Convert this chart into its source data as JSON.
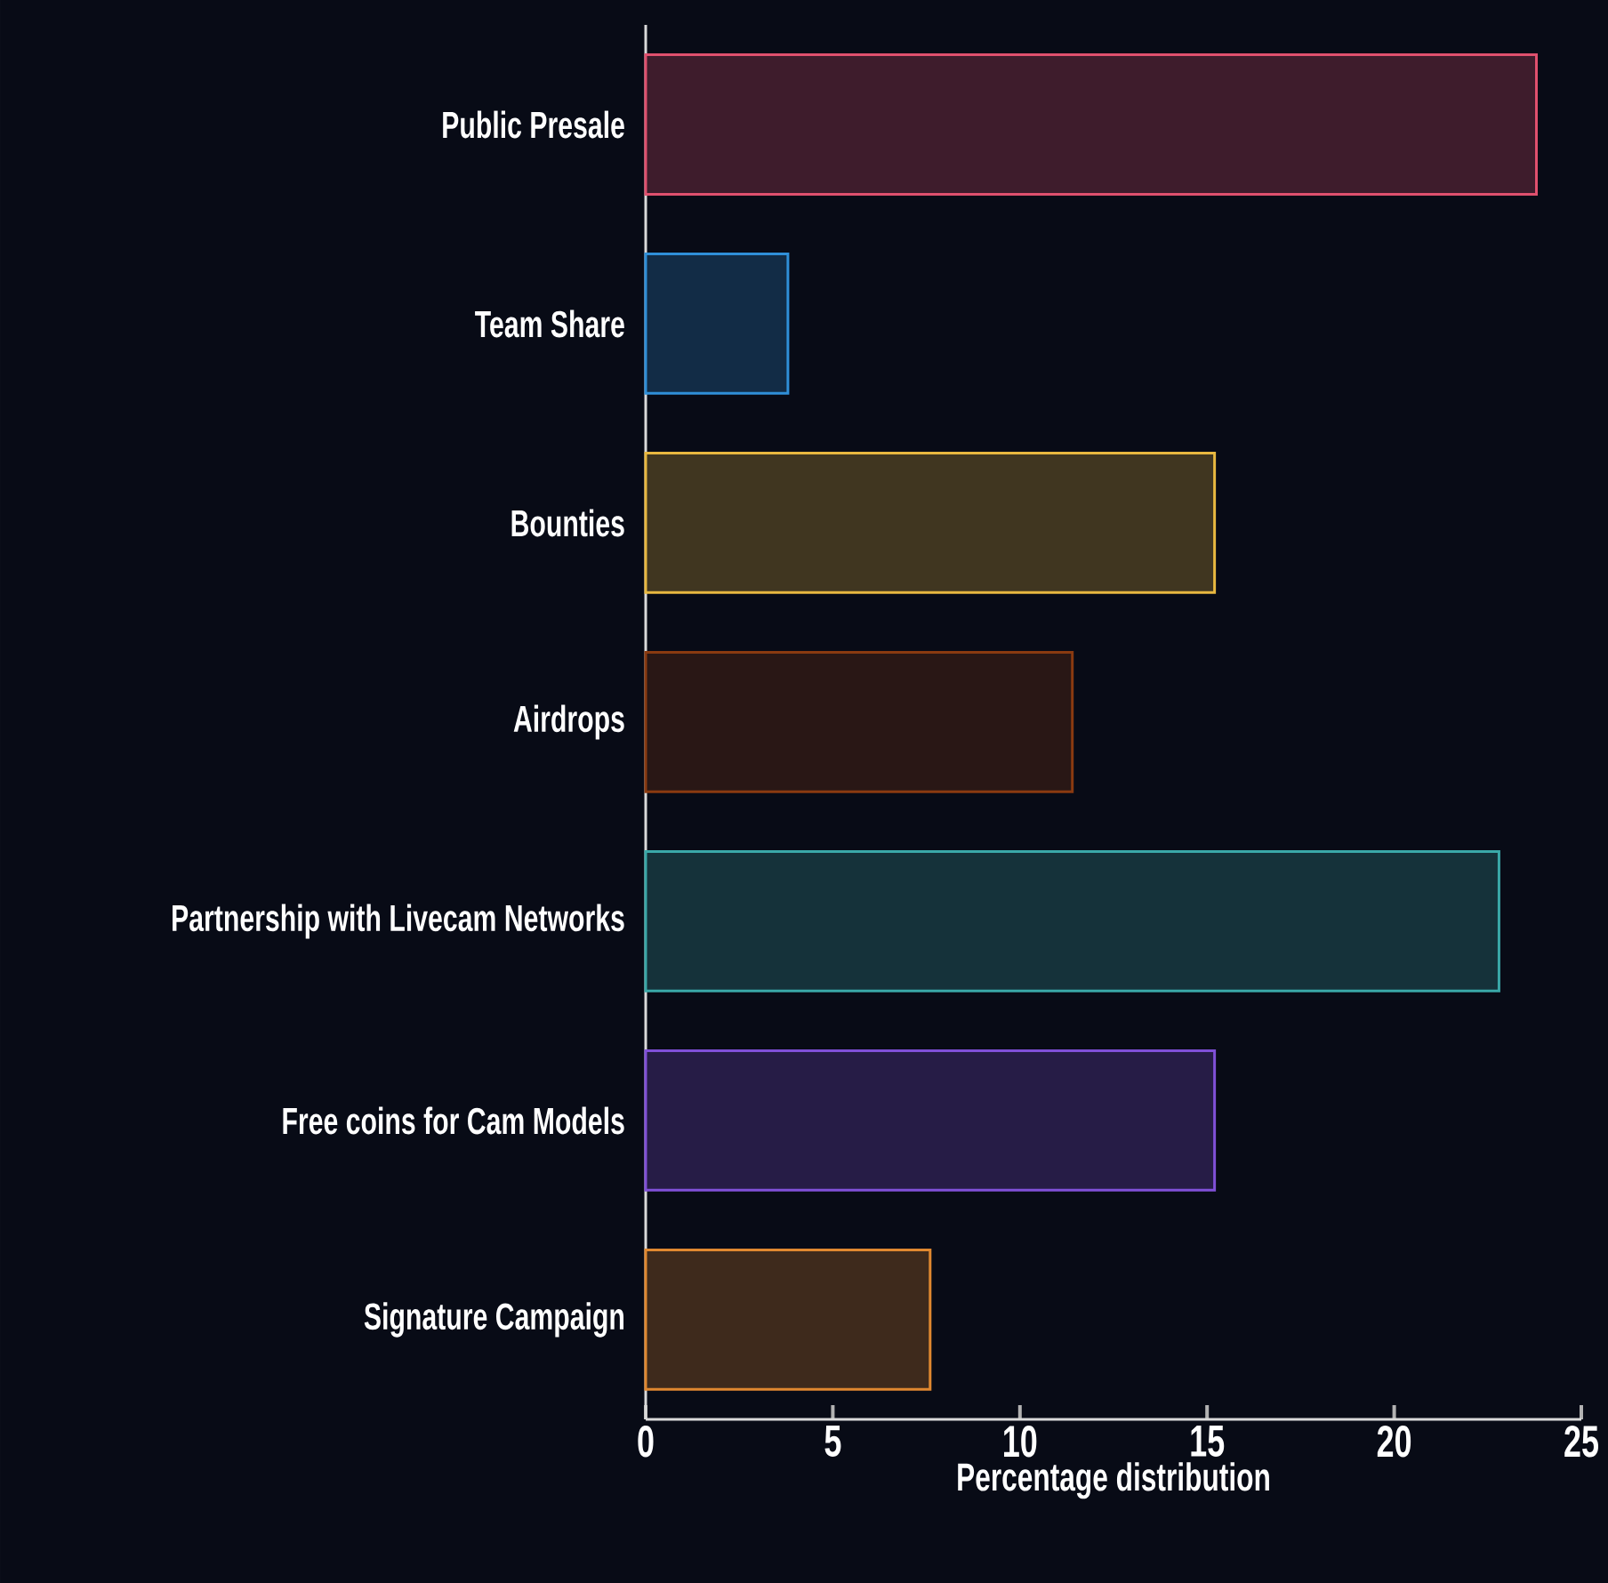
{
  "chart_data": {
    "type": "bar",
    "orientation": "horizontal",
    "xlabel": "Percentage distribution",
    "categories": [
      "Public Presale",
      "Team Share",
      "Bounties",
      "Airdrops",
      "Partnership with Livecam Networks",
      "Free coins for Cam Models",
      "Signature Campaign"
    ],
    "values": [
      23.8,
      3.8,
      15.2,
      11.4,
      22.8,
      15.2,
      7.6
    ],
    "colors": [
      "#e0506e",
      "#2f8fd8",
      "#e8b840",
      "#8a3a10",
      "#3aa8a8",
      "#8050d8",
      "#e08830"
    ],
    "xlim": [
      0,
      25
    ],
    "xticks": [
      0,
      5,
      10,
      15,
      20,
      25
    ]
  }
}
